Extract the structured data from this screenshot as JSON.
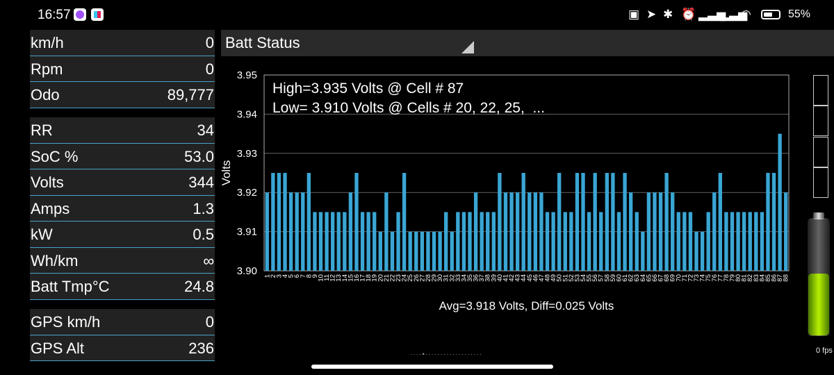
{
  "status": {
    "time": "16:57",
    "battery": "55%"
  },
  "panel": {
    "group1": [
      {
        "label": "km/h",
        "value": "0"
      },
      {
        "label": "Rpm",
        "value": "0"
      },
      {
        "label": "Odo",
        "value": "89,777"
      }
    ],
    "group2": [
      {
        "label": "RR",
        "value": "34"
      },
      {
        "label": "SoC %",
        "value": "53.0"
      },
      {
        "label": "Volts",
        "value": "344"
      },
      {
        "label": "Amps",
        "value": "1.3"
      },
      {
        "label": "kW",
        "value": "0.5"
      },
      {
        "label": "Wh/km",
        "value": "∞"
      },
      {
        "label": "Batt Tmp°C",
        "value": "24.8"
      }
    ],
    "group3": [
      {
        "label": "GPS km/h",
        "value": "0"
      },
      {
        "label": "GPS Alt",
        "value": "236"
      }
    ]
  },
  "chart_header": {
    "title": "Batt Status"
  },
  "fps": "0 fps",
  "battery_level": 0.53,
  "colors": {
    "bar": "#3aa6d4",
    "panel_bg": "#222222",
    "divider": "#4aa3c7",
    "battery_green": "#8bd400"
  },
  "chart_data": {
    "type": "bar",
    "ylabel": "Volts",
    "xlabel": "Avg=3.918 Volts, Diff=0.025 Volts",
    "ylim": [
      3.9,
      3.95
    ],
    "yticks": [
      "3.90",
      "3.91",
      "3.92",
      "3.93",
      "3.94",
      "3.95"
    ],
    "annotations": [
      "High=3.935 Volts @ Cell # 87",
      "Low= 3.910 Volts @ Cells # 20, 22, 25,  ..."
    ],
    "categories": [
      "1",
      "2",
      "3",
      "4",
      "5",
      "6",
      "7",
      "8",
      "9",
      "10",
      "11",
      "12",
      "13",
      "14",
      "15",
      "16",
      "17",
      "18",
      "19",
      "20",
      "21",
      "22",
      "23",
      "24",
      "25",
      "26",
      "27",
      "28",
      "29",
      "30",
      "31",
      "32",
      "33",
      "34",
      "35",
      "36",
      "37",
      "38",
      "39",
      "40",
      "41",
      "42",
      "43",
      "44",
      "45",
      "46",
      "47",
      "48",
      "49",
      "50",
      "51",
      "52",
      "53",
      "54",
      "55",
      "56",
      "57",
      "58",
      "59",
      "60",
      "61",
      "62",
      "63",
      "64",
      "65",
      "66",
      "67",
      "68",
      "69",
      "70",
      "71",
      "72",
      "73",
      "74",
      "75",
      "76",
      "77",
      "78",
      "79",
      "80",
      "81",
      "82",
      "83",
      "84",
      "85",
      "86",
      "87",
      "88"
    ],
    "values": [
      3.92,
      3.925,
      3.925,
      3.925,
      3.92,
      3.92,
      3.92,
      3.925,
      3.915,
      3.915,
      3.915,
      3.915,
      3.915,
      3.915,
      3.92,
      3.925,
      3.915,
      3.915,
      3.915,
      3.91,
      3.92,
      3.91,
      3.915,
      3.925,
      3.91,
      3.91,
      3.91,
      3.91,
      3.91,
      3.91,
      3.915,
      3.91,
      3.915,
      3.915,
      3.915,
      3.92,
      3.915,
      3.915,
      3.915,
      3.925,
      3.92,
      3.92,
      3.92,
      3.925,
      3.92,
      3.92,
      3.92,
      3.915,
      3.915,
      3.925,
      3.915,
      3.915,
      3.925,
      3.925,
      3.915,
      3.925,
      3.915,
      3.925,
      3.925,
      3.915,
      3.925,
      3.92,
      3.915,
      3.91,
      3.92,
      3.92,
      3.92,
      3.925,
      3.92,
      3.915,
      3.915,
      3.915,
      3.91,
      3.91,
      3.915,
      3.92,
      3.925,
      3.915,
      3.915,
      3.915,
      3.915,
      3.915,
      3.915,
      3.915,
      3.925,
      3.925,
      3.935,
      3.92
    ]
  }
}
